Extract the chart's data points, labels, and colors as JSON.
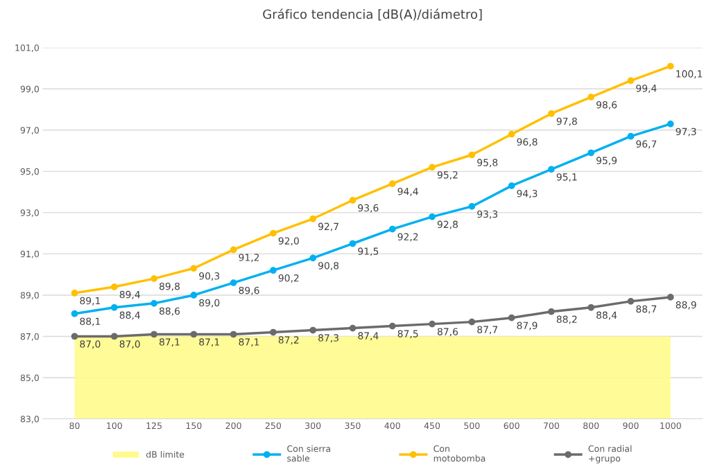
{
  "chart_data": {
    "type": "line",
    "title": "Gráfico tendencia [dB(A)/diámetro]",
    "categories": [
      "80",
      "100",
      "125",
      "150",
      "200",
      "250",
      "300",
      "350",
      "400",
      "450",
      "500",
      "600",
      "700",
      "800",
      "900",
      "1000"
    ],
    "series": [
      {
        "name": "dB limite",
        "type": "area",
        "color": "#fffb8c",
        "values": [
          87,
          87,
          87,
          87,
          87,
          87,
          87,
          87,
          87,
          87,
          87,
          87,
          87,
          87,
          87,
          87
        ]
      },
      {
        "name": "Con sierra\nsable",
        "marker": "circle",
        "color": "#00b0f0",
        "values": [
          88.1,
          88.4,
          88.6,
          89.0,
          89.6,
          90.2,
          90.8,
          91.5,
          92.2,
          92.8,
          93.3,
          94.3,
          95.1,
          95.9,
          96.7,
          97.3
        ],
        "value_labels": [
          "88,1",
          "88,4",
          "88,6",
          "89,0",
          "89,6",
          "90,2",
          "90,8",
          "91,5",
          "92,2",
          "92,8",
          "93,3",
          "94,3",
          "95,1",
          "95,9",
          "96,7",
          "97,3"
        ]
      },
      {
        "name": "Con\nmotobomba",
        "marker": "circle",
        "color": "#ffc000",
        "values": [
          89.1,
          89.4,
          89.8,
          90.3,
          91.2,
          92.0,
          92.7,
          93.6,
          94.4,
          95.2,
          95.8,
          96.8,
          97.8,
          98.6,
          99.4,
          100.1
        ],
        "value_labels": [
          "89,1",
          "89,4",
          "89,8",
          "90,3",
          "91,2",
          "92,0",
          "92,7",
          "93,6",
          "94,4",
          "95,2",
          "95,8",
          "96,8",
          "97,8",
          "98,6",
          "99,4",
          "100,1"
        ]
      },
      {
        "name": "Con radial\n+grupo",
        "marker": "circle",
        "color": "#6d6a6a",
        "values": [
          87.0,
          87.0,
          87.1,
          87.1,
          87.1,
          87.2,
          87.3,
          87.4,
          87.5,
          87.6,
          87.7,
          87.9,
          88.2,
          88.4,
          88.7,
          88.9
        ],
        "value_labels": [
          "87,0",
          "87,0",
          "87,1",
          "87,1",
          "87,1",
          "87,2",
          "87,3",
          "87,4",
          "87,5",
          "87,6",
          "87,7",
          "87,9",
          "88,2",
          "88,4",
          "88,7",
          "88,9"
        ]
      }
    ],
    "ylim": [
      83,
      101
    ],
    "yticks": [
      {
        "value": 83,
        "label": "83,0"
      },
      {
        "value": 85,
        "label": "85,0"
      },
      {
        "value": 87,
        "label": "87,0"
      },
      {
        "value": 89,
        "label": "89,0"
      },
      {
        "value": 91,
        "label": "91,0"
      },
      {
        "value": 93,
        "label": "93,0"
      },
      {
        "value": 95,
        "label": "95,0"
      },
      {
        "value": 97,
        "label": "97,0"
      },
      {
        "value": 99,
        "label": "99,0"
      },
      {
        "value": 101,
        "label": "101,0"
      }
    ],
    "grid": "y",
    "legend": "bottom",
    "line_style": "solid"
  }
}
